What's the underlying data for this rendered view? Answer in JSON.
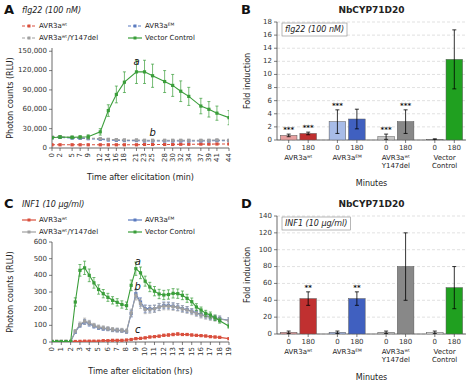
{
  "chart_data": [
    {
      "type": "line",
      "panel_label": "A",
      "subtitle": "flg22 (100 nM)",
      "xlabel": "Time after elicitation (min)",
      "ylabel": "Photon counts (RLU)",
      "xlim": [
        0,
        44
      ],
      "ylim": [
        0,
        155000
      ],
      "xticks": [
        0,
        2,
        5,
        7,
        9,
        12,
        14,
        16,
        18,
        21,
        23,
        25,
        28,
        30,
        32,
        34,
        37,
        39,
        41,
        44
      ],
      "yticks": [
        0,
        {
          "value": 30000,
          "label": "30,000"
        },
        {
          "value": 60000,
          "label": "60,000"
        },
        {
          "value": 90000,
          "label": "90,000"
        },
        {
          "value": 120000,
          "label": "120,000"
        },
        {
          "value": 150000,
          "label": "150,000"
        }
      ],
      "grid": false,
      "legend": "top",
      "x": [
        0,
        2,
        5,
        7,
        9,
        12,
        14,
        16,
        18,
        21,
        23,
        25,
        28,
        30,
        32,
        34,
        37,
        39,
        41,
        44
      ],
      "series": [
        {
          "name": "AVR3aʷᵗ",
          "color": "#d94f3d",
          "line_style": "dashed",
          "marker": "square",
          "values": [
            5000,
            5000,
            5000,
            5000,
            5000,
            5000,
            5000,
            5000,
            5000,
            5000,
            5500,
            5500,
            5500,
            5500,
            5800,
            5800,
            6000,
            6000,
            6200,
            6200
          ],
          "errors": [
            500,
            500,
            500,
            500,
            500,
            500,
            500,
            500,
            500,
            500,
            500,
            500,
            500,
            500,
            500,
            500,
            500,
            500,
            500,
            500
          ]
        },
        {
          "name": "AVR3aᴱᴹ",
          "color": "#5b7bbf",
          "line_style": "dashed",
          "marker": "square",
          "values": [
            16000,
            16500,
            15500,
            15000,
            14500,
            13500,
            12500,
            12000,
            11500,
            11500,
            11000,
            11000,
            11000,
            11000,
            11000,
            11000,
            11000,
            11000,
            11500,
            11500
          ],
          "errors": [
            1500,
            1500,
            1500,
            1500,
            1500,
            1200,
            1200,
            1200,
            1200,
            1200,
            1200,
            1200,
            1200,
            1200,
            1200,
            1200,
            1200,
            1200,
            1200,
            1200
          ]
        },
        {
          "name": "AVR3aʷᵗ/Y147del",
          "color": "#a0a0a0",
          "line_style": "dashed",
          "marker": "square",
          "values": [
            17000,
            17500,
            16500,
            16000,
            15500,
            14500,
            13500,
            13000,
            12500,
            12500,
            12000,
            12000,
            12000,
            12000,
            12000,
            12000,
            12000,
            12000,
            12500,
            12000
          ],
          "errors": [
            1500,
            1500,
            1500,
            1500,
            1500,
            1200,
            1200,
            1200,
            1200,
            1200,
            1200,
            1200,
            1200,
            1200,
            1200,
            1200,
            1200,
            1200,
            1200,
            1200
          ]
        },
        {
          "name": "Vector Control",
          "color": "#3a9e3a",
          "line_style": "solid",
          "marker": "square",
          "values": [
            16000,
            17000,
            16500,
            17000,
            17500,
            25000,
            58000,
            83000,
            102000,
            118000,
            118000,
            112000,
            103000,
            97000,
            88000,
            80000,
            65000,
            60000,
            54000,
            47000
          ],
          "errors": [
            2000,
            2000,
            2000,
            2000,
            3000,
            5000,
            9000,
            13000,
            16000,
            18000,
            18000,
            18000,
            17000,
            17000,
            16000,
            14000,
            12000,
            12000,
            11000,
            11000
          ]
        }
      ],
      "annotations": [
        {
          "text": "a",
          "x": 21,
          "y": 128000
        },
        {
          "text": "b",
          "x": 25,
          "y": 18000
        }
      ]
    },
    {
      "type": "bar",
      "panel_label": "B",
      "title": "NbCYP71D20",
      "subtitle": "flg22 (100 nM)",
      "xlabel": "Minutes",
      "ylabel": "Fold induction",
      "ylim": [
        0,
        18
      ],
      "yticks": [
        0,
        2,
        4,
        6,
        8,
        10,
        12,
        14,
        16,
        18
      ],
      "grid": true,
      "categories": [
        "0",
        "180",
        "0",
        "180",
        "0",
        "180",
        "0",
        "180"
      ],
      "groups": [
        "AVR3aʷᵗ",
        "AVR3aᴱᴹ",
        "AVR3aʷᵗ\nY147del",
        "Vector\nControl"
      ],
      "values": [
        0.7,
        1.0,
        2.8,
        3.2,
        0.5,
        2.8,
        0.1,
        12.3
      ],
      "errors": [
        0.2,
        0.2,
        1.8,
        1.5,
        0.4,
        1.8,
        0.08,
        4.5
      ],
      "colors": [
        "#e8a0a0",
        "#c03030",
        "#a8bce8",
        "#4060c0",
        "#c8c8c8",
        "#888888",
        "#e8e8e8",
        "#20a020"
      ],
      "significance": [
        "***",
        "***",
        "***",
        null,
        "***",
        "***",
        null,
        null
      ]
    },
    {
      "type": "line",
      "panel_label": "C",
      "subtitle": "INF1 (10 μg/ml)",
      "xlabel": "Time after elicitation (hrs)",
      "ylabel": "Photon counts (RLU)",
      "xlim": [
        0,
        19
      ],
      "ylim": [
        0,
        600
      ],
      "xticks": [
        0,
        1,
        2,
        3,
        4,
        5,
        6,
        7,
        8,
        9,
        10,
        11,
        12,
        13,
        14,
        15,
        16,
        17,
        18,
        19
      ],
      "yticks": [
        0,
        100,
        200,
        300,
        400,
        500,
        600
      ],
      "grid": false,
      "legend": "top",
      "x": [
        0,
        0.5,
        1,
        1.5,
        2,
        2.5,
        3,
        3.5,
        4,
        4.5,
        5,
        5.5,
        6,
        6.5,
        7,
        7.5,
        8,
        8.5,
        9,
        9.5,
        10,
        10.5,
        11,
        11.5,
        12,
        12.5,
        13,
        13.5,
        14,
        14.5,
        15,
        15.5,
        16,
        16.5,
        17,
        17.5,
        18,
        19
      ],
      "series": [
        {
          "name": "AVR3aʷᵗ",
          "color": "#d94f3d",
          "line_style": "solid",
          "marker": "square",
          "values": [
            3,
            3,
            3,
            3,
            3,
            3,
            4,
            5,
            5,
            5,
            5,
            8,
            8,
            10,
            10,
            10,
            12,
            15,
            20,
            22,
            25,
            30,
            32,
            35,
            40,
            42,
            45,
            48,
            45,
            45,
            42,
            40,
            38,
            36,
            32,
            30,
            28,
            20
          ],
          "errors": [
            2,
            2,
            2,
            2,
            2,
            2,
            2,
            2,
            2,
            2,
            2,
            2,
            2,
            2,
            3,
            3,
            3,
            4,
            5,
            5,
            5,
            5,
            5,
            6,
            6,
            7,
            7,
            7,
            6,
            6,
            6,
            5,
            5,
            5,
            5,
            5,
            5,
            5
          ]
        },
        {
          "name": "AVR3aᴱᴹ",
          "color": "#5b7bbf",
          "line_style": "solid",
          "marker": "square",
          "values": [
            3,
            3,
            3,
            3,
            3,
            60,
            100,
            120,
            110,
            95,
            85,
            80,
            78,
            72,
            70,
            68,
            62,
            170,
            290,
            240,
            200,
            200,
            200,
            210,
            220,
            220,
            215,
            210,
            200,
            195,
            185,
            175,
            165,
            158,
            150,
            145,
            140,
            130
          ],
          "errors": [
            2,
            2,
            2,
            2,
            2,
            8,
            12,
            15,
            15,
            12,
            10,
            10,
            10,
            10,
            10,
            10,
            10,
            20,
            25,
            25,
            22,
            20,
            20,
            20,
            20,
            20,
            20,
            20,
            18,
            18,
            15,
            15,
            15,
            15,
            15,
            15,
            15,
            15
          ]
        },
        {
          "name": "AVR3aʷᵗ/Y147del",
          "color": "#a0a0a0",
          "line_style": "solid",
          "marker": "square",
          "values": [
            3,
            3,
            3,
            3,
            3,
            65,
            105,
            125,
            115,
            100,
            90,
            85,
            80,
            75,
            72,
            70,
            65,
            175,
            280,
            230,
            195,
            195,
            200,
            210,
            215,
            215,
            212,
            208,
            198,
            192,
            182,
            172,
            162,
            155,
            148,
            143,
            138,
            128
          ],
          "errors": [
            2,
            2,
            2,
            2,
            2,
            10,
            15,
            18,
            15,
            12,
            12,
            12,
            12,
            12,
            12,
            12,
            12,
            22,
            28,
            28,
            25,
            22,
            22,
            22,
            22,
            22,
            22,
            22,
            20,
            20,
            18,
            18,
            18,
            18,
            18,
            18,
            18,
            18
          ]
        },
        {
          "name": "Vector Control",
          "color": "#3a9e3a",
          "line_style": "solid",
          "marker": "square",
          "values": [
            3,
            3,
            3,
            3,
            3,
            240,
            430,
            445,
            400,
            355,
            315,
            290,
            268,
            250,
            238,
            225,
            218,
            340,
            440,
            415,
            365,
            330,
            305,
            288,
            282,
            285,
            292,
            290,
            280,
            262,
            242,
            210,
            192,
            172,
            162,
            145,
            128,
            95
          ],
          "errors": [
            2,
            2,
            2,
            2,
            2,
            25,
            35,
            40,
            38,
            32,
            28,
            25,
            24,
            22,
            22,
            22,
            22,
            32,
            40,
            35,
            30,
            28,
            28,
            28,
            28,
            28,
            28,
            28,
            26,
            24,
            22,
            20,
            18,
            18,
            18,
            16,
            15,
            12
          ]
        }
      ],
      "annotations": [
        {
          "text": "a",
          "x": 9.2,
          "y": 460
        },
        {
          "text": "b",
          "x": 9.2,
          "y": 310
        },
        {
          "text": "c",
          "x": 9.2,
          "y": 55
        }
      ]
    },
    {
      "type": "bar",
      "panel_label": "D",
      "title": "NbCYP71D20",
      "subtitle": "INF1 (10 μg/ml)",
      "xlabel": "Minutes",
      "ylabel": "Fold induction",
      "ylim": [
        0,
        140
      ],
      "yticks": [
        0,
        20,
        40,
        60,
        80,
        100,
        120,
        140
      ],
      "grid": true,
      "categories": [
        "0",
        "180",
        "0",
        "180",
        "0",
        "180",
        "0",
        "180"
      ],
      "groups": [
        "AVR3aʷᵗ",
        "AVR3aᴱᴹ",
        "AVR3aʷᵗ\nY147del",
        "Vector\nControl"
      ],
      "values": [
        2,
        42,
        2,
        42,
        2,
        80,
        2,
        55
      ],
      "errors": [
        1.5,
        8,
        1.5,
        8,
        1.5,
        40,
        1.5,
        25
      ],
      "colors": [
        "#e8a0a0",
        "#c03030",
        "#a8bce8",
        "#4060c0",
        "#c8c8c8",
        "#888888",
        "#e8e8e8",
        "#20a020"
      ],
      "significance": [
        null,
        "**",
        null,
        "**",
        null,
        null,
        null,
        null
      ]
    }
  ]
}
